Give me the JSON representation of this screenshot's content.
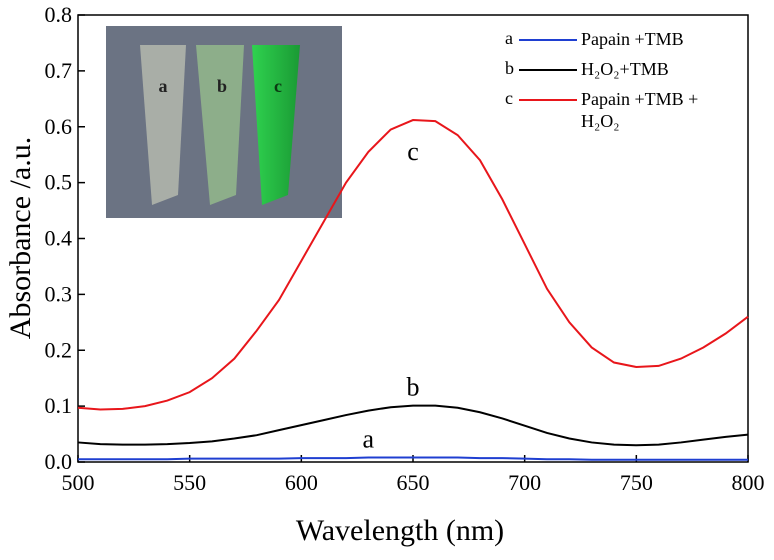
{
  "chart_data": {
    "type": "line",
    "x_label": "Wavelength (nm)",
    "y_label": "Absorbance /a.u.",
    "x": [
      500,
      510,
      520,
      530,
      540,
      550,
      560,
      570,
      580,
      590,
      600,
      610,
      620,
      630,
      640,
      650,
      660,
      670,
      680,
      690,
      700,
      710,
      720,
      730,
      740,
      750,
      760,
      770,
      780,
      790,
      800
    ],
    "series": [
      {
        "name": "Papain +TMB",
        "label": "a",
        "color": "#1f3fd1",
        "values": [
          0.005,
          0.005,
          0.005,
          0.005,
          0.005,
          0.006,
          0.006,
          0.006,
          0.006,
          0.006,
          0.007,
          0.007,
          0.007,
          0.008,
          0.008,
          0.008,
          0.008,
          0.008,
          0.007,
          0.007,
          0.006,
          0.005,
          0.005,
          0.004,
          0.004,
          0.004,
          0.004,
          0.004,
          0.004,
          0.004,
          0.004
        ]
      },
      {
        "name": "H₂O₂+TMB",
        "label": "b",
        "color": "#000000",
        "values": [
          0.035,
          0.032,
          0.031,
          0.031,
          0.032,
          0.034,
          0.037,
          0.042,
          0.048,
          0.057,
          0.066,
          0.075,
          0.084,
          0.092,
          0.098,
          0.101,
          0.101,
          0.097,
          0.089,
          0.078,
          0.065,
          0.052,
          0.042,
          0.035,
          0.031,
          0.03,
          0.031,
          0.035,
          0.04,
          0.045,
          0.049
        ]
      },
      {
        "name": "Papain +TMB + H₂O₂",
        "label": "c",
        "color": "#e8161b",
        "values": [
          0.097,
          0.094,
          0.095,
          0.1,
          0.11,
          0.125,
          0.15,
          0.185,
          0.235,
          0.29,
          0.36,
          0.43,
          0.5,
          0.555,
          0.595,
          0.612,
          0.61,
          0.585,
          0.54,
          0.47,
          0.39,
          0.31,
          0.25,
          0.205,
          0.178,
          0.17,
          0.172,
          0.185,
          0.205,
          0.23,
          0.26
        ]
      }
    ],
    "xlim": [
      500,
      800
    ],
    "xticks": [
      500,
      550,
      600,
      650,
      700,
      750,
      800
    ],
    "ylim": [
      0,
      0.8
    ],
    "yticks": [
      {
        "value": 0,
        "label": "0.0"
      },
      0.1,
      0.2,
      0.3,
      0.4,
      0.5,
      0.6,
      0.7,
      0.8
    ],
    "legend": "upper right",
    "inset": {
      "labels": [
        "a",
        "b",
        "c"
      ]
    }
  }
}
